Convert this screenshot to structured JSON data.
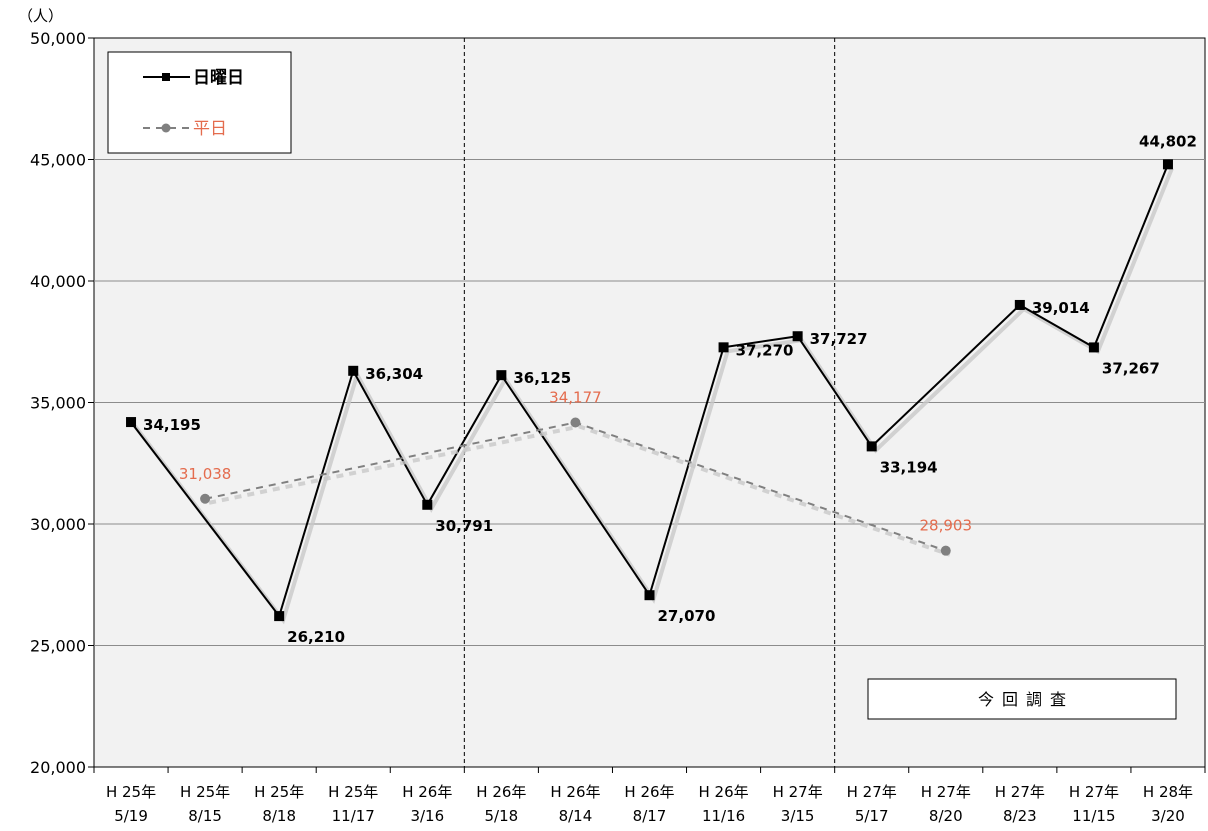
{
  "chart_data": {
    "type": "line",
    "unit_label": "（人）",
    "categories": [
      [
        "H 25年",
        "5/19"
      ],
      [
        "H 25年",
        "8/15"
      ],
      [
        "H 25年",
        "8/18"
      ],
      [
        "H 25年",
        "11/17"
      ],
      [
        "H 26年",
        "3/16"
      ],
      [
        "H 26年",
        "5/18"
      ],
      [
        "H 26年",
        "8/14"
      ],
      [
        "H 26年",
        "8/17"
      ],
      [
        "H 26年",
        "11/16"
      ],
      [
        "H 27年",
        "3/15"
      ],
      [
        "H 27年",
        "5/17"
      ],
      [
        "H 27年",
        "8/20"
      ],
      [
        "H 27年",
        "8/23"
      ],
      [
        "H 27年",
        "11/15"
      ],
      [
        "H 28年",
        "3/20"
      ]
    ],
    "ylim": [
      20000,
      50000
    ],
    "yticks": [
      20000,
      25000,
      30000,
      35000,
      40000,
      45000,
      50000
    ],
    "ytick_labels": [
      "20,000",
      "25,000",
      "30,000",
      "35,000",
      "40,000",
      "45,000",
      "50,000"
    ],
    "grid": true,
    "legend_position": "top-left",
    "series": [
      {
        "name": "日曜日",
        "style": "solid",
        "color": "#000000",
        "points": [
          {
            "i": 0,
            "y": 34195,
            "label": "34,195"
          },
          {
            "i": 2,
            "y": 26210,
            "label": "26,210"
          },
          {
            "i": 3,
            "y": 36304,
            "label": "36,304"
          },
          {
            "i": 4,
            "y": 30791,
            "label": "30,791"
          },
          {
            "i": 5,
            "y": 36125,
            "label": "36,125"
          },
          {
            "i": 7,
            "y": 27070,
            "label": "27,070"
          },
          {
            "i": 8,
            "y": 37270,
            "label": "37,270"
          },
          {
            "i": 9,
            "y": 37727,
            "label": "37,727"
          },
          {
            "i": 10,
            "y": 33194,
            "label": "33,194"
          },
          {
            "i": 12,
            "y": 39014,
            "label": "39,014"
          },
          {
            "i": 13,
            "y": 37267,
            "label": "37,267"
          },
          {
            "i": 14,
            "y": 44802,
            "label": "44,802"
          }
        ]
      },
      {
        "name": "平日",
        "style": "dashed",
        "color": "#808080",
        "label_color": "#e46c4e",
        "points": [
          {
            "i": 1,
            "y": 31038,
            "label": "31,038"
          },
          {
            "i": 6,
            "y": 34177,
            "label": "34,177"
          },
          {
            "i": 11,
            "y": 28903,
            "label": "28,903"
          }
        ]
      }
    ],
    "annotation": "今回調査",
    "period_separators_after_index": [
      4,
      9
    ]
  }
}
